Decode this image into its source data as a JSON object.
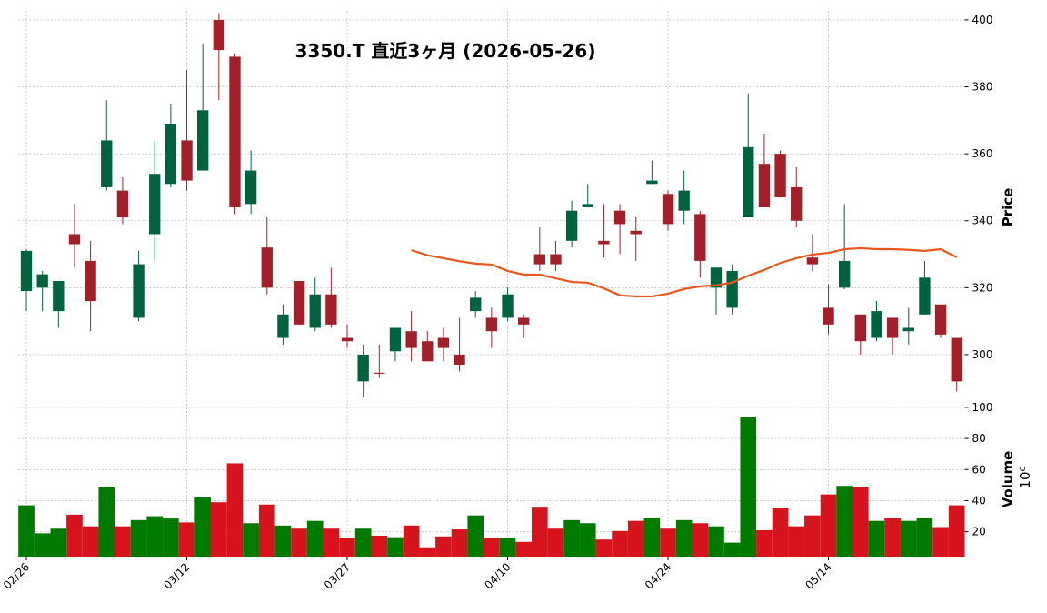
{
  "chart_data": {
    "type": "candlestick",
    "title": "3350.T  直近3ヶ月  (2026-05-26)",
    "categories": [
      "02/26",
      null,
      null,
      null,
      null,
      null,
      null,
      null,
      null,
      null,
      "03/12",
      null,
      null,
      null,
      null,
      null,
      null,
      null,
      null,
      null,
      "03/27",
      null,
      null,
      null,
      null,
      null,
      null,
      null,
      null,
      null,
      "04/10",
      null,
      null,
      null,
      null,
      null,
      null,
      null,
      null,
      null,
      "04/24",
      null,
      null,
      null,
      null,
      null,
      null,
      null,
      null,
      null,
      "05/14",
      null,
      null,
      null,
      null,
      null,
      null,
      null,
      null
    ],
    "open": [
      319,
      320,
      313,
      336,
      328,
      350,
      349,
      311,
      336,
      351,
      364,
      355,
      400,
      389,
      345,
      332,
      305,
      322,
      308,
      318,
      305,
      292,
      294.6,
      301,
      307,
      304,
      305,
      300,
      313,
      311,
      311,
      311,
      330,
      330,
      334,
      344,
      334,
      343,
      337,
      351,
      348,
      343,
      342,
      320,
      314,
      341,
      357,
      360,
      350,
      329,
      314,
      320,
      312,
      305,
      311,
      307,
      312,
      315,
      305
    ],
    "high": [
      331.5,
      325,
      322,
      345,
      334,
      376,
      353,
      331,
      364,
      375,
      385,
      393,
      402,
      390,
      361,
      341,
      315,
      322,
      323,
      326,
      309,
      303,
      303,
      308,
      313,
      307,
      308,
      311,
      319,
      314,
      320,
      312,
      338,
      334,
      346,
      351,
      345,
      345,
      341,
      358,
      349,
      355,
      343,
      326,
      327,
      378,
      366,
      361,
      356,
      336,
      321,
      345,
      312,
      316,
      311,
      314,
      328,
      315,
      305
    ],
    "low": [
      313,
      313,
      308,
      326,
      307,
      349,
      339,
      310,
      328,
      350,
      349,
      355,
      376,
      342,
      342,
      318,
      303,
      309,
      307,
      308,
      302,
      287.5,
      293,
      298,
      298,
      298,
      298,
      295,
      311,
      302,
      310,
      305,
      325,
      325,
      332,
      344,
      329,
      330,
      328,
      351,
      337,
      339,
      323,
      312,
      312,
      341,
      344,
      347,
      338,
      325,
      306,
      319.5,
      300,
      304,
      300,
      303,
      312,
      305,
      289
    ],
    "close": [
      331,
      324,
      322,
      333,
      316,
      364,
      341,
      327,
      354,
      369,
      352,
      373,
      391,
      344,
      355,
      320,
      312,
      309,
      318,
      309,
      304,
      300,
      294.3,
      308,
      302,
      298,
      302,
      297,
      317,
      307,
      318,
      309,
      327,
      327,
      343,
      345,
      333,
      339,
      336,
      352,
      339,
      349,
      328,
      326,
      325,
      362,
      344,
      347,
      340,
      327,
      309,
      328,
      304,
      313,
      305,
      308,
      323,
      306,
      292
    ],
    "up_color": "#006340",
    "down_color": "#a3202a",
    "ma": {
      "color": "#e8581c",
      "values": [
        null,
        null,
        null,
        null,
        null,
        null,
        null,
        null,
        null,
        null,
        null,
        null,
        null,
        null,
        null,
        null,
        null,
        null,
        null,
        null,
        null,
        null,
        null,
        null,
        331.2,
        329.7,
        328.8,
        327.9,
        327.2,
        326.9,
        325,
        323.9,
        323.9,
        322.8,
        321.7,
        321.5,
        319.8,
        317.7,
        317.4,
        317.4,
        318.2,
        319.6,
        320.4,
        320.7,
        321.5,
        323.6,
        325.3,
        327.4,
        328.8,
        329.9,
        330.4,
        331.5,
        331.8,
        331.5,
        331.5,
        331.3,
        331,
        331.5,
        329.1
      ]
    },
    "ylabel": "Price",
    "ylim": [
      286.4,
      402.7
    ],
    "yticks": [
      300,
      320,
      340,
      360,
      380,
      400
    ],
    "grid": true,
    "volume": {
      "values": [
        37,
        19,
        22,
        31,
        23.5,
        49,
        23.5,
        27.5,
        30,
        28.5,
        26,
        42,
        39,
        64,
        25.5,
        37.5,
        24,
        22,
        27,
        22,
        16,
        22,
        17.5,
        16.5,
        24,
        10,
        17,
        21.5,
        30.5,
        16,
        16,
        13.5,
        35.5,
        22,
        27.5,
        25.5,
        15,
        20.5,
        27,
        29,
        22,
        27.5,
        25.5,
        23.5,
        13,
        94,
        21,
        35,
        23.5,
        30.5,
        44,
        49.5,
        49,
        27,
        29,
        27,
        29,
        23,
        37
      ],
      "ylabel": "Volume",
      "scale_label": "10⁶",
      "ylim": [
        4,
        101.7
      ],
      "yticks": [
        20,
        40,
        60,
        80,
        100
      ],
      "up_color": "#007a00",
      "down_color": "#d7141e"
    }
  }
}
